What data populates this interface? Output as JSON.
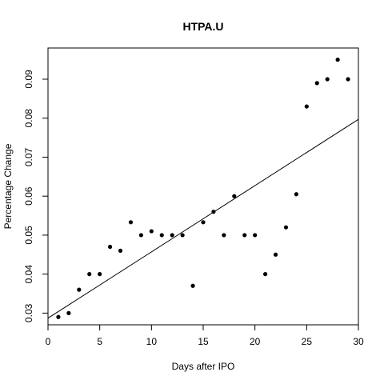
{
  "chart_data": {
    "type": "scatter",
    "title": "HTPA.U",
    "xlabel": "Days after IPO",
    "ylabel": "Percentage Change",
    "xlim": [
      0,
      30
    ],
    "ylim": [
      0.027,
      0.098
    ],
    "x_ticks": [
      0,
      5,
      10,
      15,
      20,
      25,
      30
    ],
    "y_ticks": [
      0.03,
      0.04,
      0.05,
      0.06,
      0.07,
      0.08,
      0.09
    ],
    "x_tick_labels": [
      "0",
      "5",
      "10",
      "15",
      "20",
      "25",
      "30"
    ],
    "y_tick_labels": [
      "0.03",
      "0.04",
      "0.05",
      "0.06",
      "0.07",
      "0.08",
      "0.09"
    ],
    "grid": false,
    "legend": "none",
    "series": [
      {
        "x": [
          1,
          2,
          3,
          4,
          5,
          6,
          7,
          8,
          9,
          10,
          11,
          12,
          13,
          14,
          15,
          16,
          17,
          18,
          19,
          20,
          21,
          22,
          23,
          24,
          25,
          26,
          27,
          28,
          29
        ],
        "y": [
          0.029,
          0.03,
          0.036,
          0.04,
          0.04,
          0.047,
          0.046,
          0.0533,
          0.05,
          0.051,
          0.05,
          0.05,
          0.05,
          0.037,
          0.0533,
          0.056,
          0.05,
          0.06,
          0.05,
          0.05,
          0.04,
          0.045,
          0.052,
          0.0605,
          0.083,
          0.089,
          0.09,
          0.095,
          0.09
        ]
      }
    ],
    "trend_line": {
      "x": [
        0,
        30
      ],
      "y": [
        0.0287,
        0.0797
      ]
    },
    "colors": {
      "points": "#000000",
      "line": "#000000",
      "axes": "#000000"
    }
  }
}
